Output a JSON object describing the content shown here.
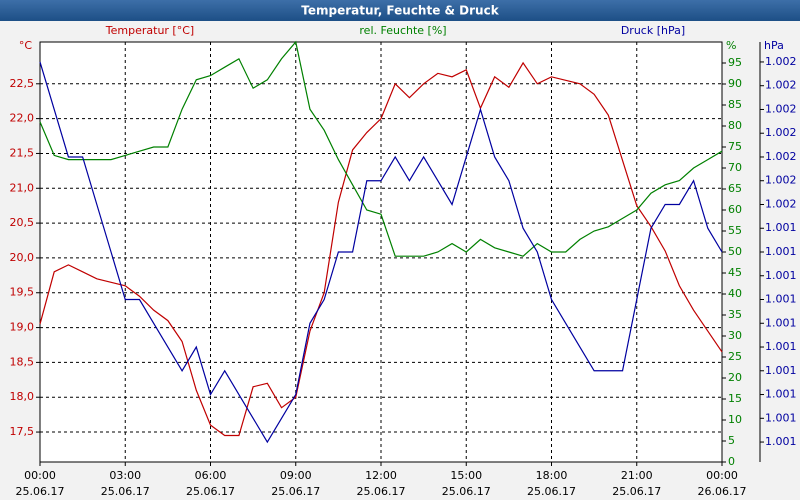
{
  "chart_data": {
    "type": "line",
    "title": "Temperatur, Feuchte & Druck",
    "ylabel": "°C",
    "y2label": "%",
    "y3label": "hPa",
    "xlim": [
      0,
      24
    ],
    "xticks": [
      {
        "value": 0,
        "label": "00:00"
      },
      {
        "value": 3,
        "label": "03:00"
      },
      {
        "value": 6,
        "label": "06:00"
      },
      {
        "value": 9,
        "label": "09:00"
      },
      {
        "value": 12,
        "label": "12:00"
      },
      {
        "value": 15,
        "label": "15:00"
      },
      {
        "value": 18,
        "label": "18:00"
      },
      {
        "value": 21,
        "label": "21:00"
      },
      {
        "value": 24,
        "label": "00:00"
      }
    ],
    "xtick_dates": [
      "25.06.17",
      "25.06.17",
      "25.06.17",
      "25.06.17",
      "25.06.17",
      "25.06.17",
      "25.06.17",
      "25.06.17",
      "26.06.17"
    ],
    "ylim": [
      17.07,
      23.1
    ],
    "yticks": [
      {
        "value": 17.5,
        "label": "17,5"
      },
      {
        "value": 18,
        "label": "18,0"
      },
      {
        "value": 18.5,
        "label": "18,5"
      },
      {
        "value": 19,
        "label": "19,0"
      },
      {
        "value": 19.5,
        "label": "19,5"
      },
      {
        "value": 20,
        "label": "20,0"
      },
      {
        "value": 20.5,
        "label": "20,5"
      },
      {
        "value": 21,
        "label": "21,0"
      },
      {
        "value": 21.5,
        "label": "21,5"
      },
      {
        "value": 22,
        "label": "22,0"
      },
      {
        "value": 22.5,
        "label": "22,5"
      }
    ],
    "y2lim": [
      0,
      100
    ],
    "y2ticks": [
      0,
      5,
      10,
      15,
      20,
      25,
      30,
      35,
      40,
      45,
      50,
      55,
      60,
      65,
      70,
      75,
      80,
      85,
      90,
      95
    ],
    "y3lim": [
      1.000516,
      1.002284
    ],
    "y3ticks": [
      {
        "value": 1.0006,
        "label": "1.001"
      },
      {
        "value": 1.0007,
        "label": "1.001"
      },
      {
        "value": 1.0008,
        "label": "1.001"
      },
      {
        "value": 1.0009,
        "label": "1.001"
      },
      {
        "value": 1.001,
        "label": "1.001"
      },
      {
        "value": 1.0011,
        "label": "1.001"
      },
      {
        "value": 1.0012,
        "label": "1.001"
      },
      {
        "value": 1.0013,
        "label": "1.001"
      },
      {
        "value": 1.0014,
        "label": "1.001"
      },
      {
        "value": 1.0015,
        "label": "1.001"
      },
      {
        "value": 1.0016,
        "label": "1.002"
      },
      {
        "value": 1.0017,
        "label": "1.002"
      },
      {
        "value": 1.0018,
        "label": "1.002"
      },
      {
        "value": 1.0019,
        "label": "1.002"
      },
      {
        "value": 1.002,
        "label": "1.002"
      },
      {
        "value": 1.0021,
        "label": "1.002"
      },
      {
        "value": 1.0022,
        "label": "1.002"
      }
    ],
    "grid": true,
    "x": [
      0,
      0.5,
      1,
      1.5,
      2,
      2.5,
      3,
      3.5,
      4,
      4.5,
      5,
      5.5,
      6,
      6.5,
      7,
      7.5,
      8,
      8.5,
      9,
      9.5,
      10,
      10.5,
      11,
      11.5,
      12,
      12.5,
      13,
      13.5,
      14,
      14.5,
      15,
      15.5,
      16,
      16.5,
      17,
      17.5,
      18,
      18.5,
      19,
      19.5,
      20,
      20.5,
      21,
      21.5,
      22,
      22.5,
      23,
      23.5,
      24
    ],
    "series": [
      {
        "name": "Temperatur [°C]",
        "color": "#c00000",
        "axis": "y",
        "values": [
          19.05,
          19.8,
          19.9,
          19.8,
          19.7,
          19.65,
          19.6,
          19.45,
          19.25,
          19.1,
          18.8,
          18.1,
          17.6,
          17.45,
          17.45,
          18.15,
          18.2,
          17.85,
          18.0,
          18.95,
          19.5,
          20.8,
          21.55,
          21.8,
          22.0,
          22.5,
          22.3,
          22.5,
          22.65,
          22.6,
          22.7,
          22.15,
          22.6,
          22.45,
          22.8,
          22.5,
          22.6,
          22.55,
          22.5,
          22.35,
          22.05,
          21.4,
          20.75,
          20.45,
          20.1,
          19.6,
          19.25,
          18.95,
          18.65
        ]
      },
      {
        "name": "rel. Feuchte [%]",
        "color": "#008000",
        "axis": "y2",
        "values": [
          81,
          73,
          72,
          72,
          72,
          72,
          73,
          74,
          75,
          75,
          84,
          91,
          92,
          94,
          96,
          89,
          91,
          96,
          100,
          84,
          79,
          72,
          66,
          60,
          59,
          49,
          49,
          49,
          50,
          52,
          50,
          53,
          51,
          50,
          49,
          52,
          50,
          50,
          53,
          55,
          56,
          58,
          60,
          64,
          66,
          67,
          70,
          72,
          74
        ]
      },
      {
        "name": "Druck [hPa]",
        "color": "#0000a0",
        "axis": "y3",
        "values": [
          1.0022,
          1.002,
          1.0018,
          1.0018,
          1.0016,
          1.0014,
          1.0012,
          1.0012,
          1.0011,
          1.001,
          1.0009,
          1.001,
          1.0008,
          1.0009,
          1.0008,
          1.0007,
          1.0006,
          1.0007,
          1.0008,
          1.0011,
          1.0012,
          1.0014,
          1.0014,
          1.0017,
          1.0017,
          1.0018,
          1.0017,
          1.0018,
          1.0017,
          1.0016,
          1.0018,
          1.002,
          1.0018,
          1.0017,
          1.0015,
          1.0014,
          1.0012,
          1.0011,
          1.001,
          1.0009,
          1.0009,
          1.0009,
          1.0012,
          1.0015,
          1.0016,
          1.0016,
          1.0017,
          1.0015,
          1.0014
        ]
      }
    ]
  }
}
